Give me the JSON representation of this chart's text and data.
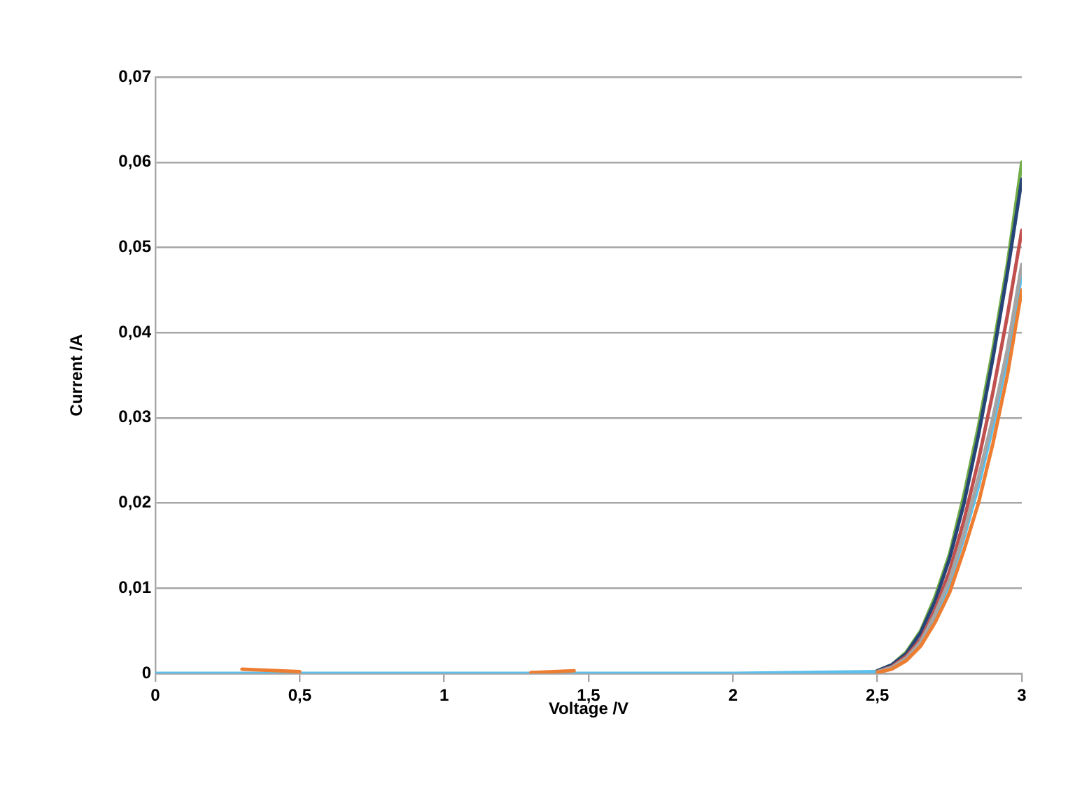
{
  "chart_data": {
    "type": "line",
    "xlabel": "Voltage /V",
    "ylabel": "Current /A",
    "x": [
      0,
      0.3,
      0.5,
      1,
      1.3,
      1.45,
      1.5,
      2,
      2.5,
      2.55,
      2.6,
      2.65,
      2.7,
      2.75,
      2.8,
      2.85,
      2.9,
      2.95,
      3
    ],
    "series": [
      {
        "color": "#ed7d31",
        "values": [
          null,
          0.0005,
          0.0002,
          null,
          0.0001,
          0.0003,
          null,
          null,
          0.0001,
          0.0005,
          0.0015,
          0.0032,
          0.006,
          0.0095,
          0.0145,
          0.02,
          0.027,
          0.035,
          0.045
        ]
      },
      {
        "color": "#a5a5a5",
        "values": [
          null,
          null,
          null,
          null,
          null,
          null,
          null,
          null,
          0.0002,
          0.0007,
          0.0018,
          0.0037,
          0.007,
          0.011,
          0.0165,
          0.023,
          0.03,
          0.038,
          0.048
        ]
      },
      {
        "color": "#c0504d",
        "values": [
          null,
          null,
          null,
          null,
          null,
          null,
          null,
          null,
          0.0002,
          0.0008,
          0.002,
          0.004,
          0.0075,
          0.012,
          0.018,
          0.025,
          0.033,
          0.042,
          0.052
        ]
      },
      {
        "color": "#264478",
        "values": [
          null,
          null,
          null,
          null,
          null,
          null,
          null,
          null,
          0.0003,
          0.001,
          0.0023,
          0.0048,
          0.0085,
          0.0135,
          0.02,
          0.028,
          0.037,
          0.047,
          0.058
        ]
      },
      {
        "color": "#70ad47",
        "values": [
          null,
          null,
          null,
          null,
          null,
          null,
          null,
          null,
          0.0003,
          0.001,
          0.0025,
          0.005,
          0.009,
          0.014,
          0.021,
          0.029,
          0.038,
          0.048,
          0.06
        ]
      },
      {
        "color": "#5bc0eb",
        "values": [
          0,
          0,
          0,
          0,
          0,
          0,
          0,
          0,
          0.0002,
          0.0007,
          0.0017,
          0.0035,
          0.0067,
          0.0105,
          0.016,
          0.022,
          0.029,
          0.037,
          0.047
        ]
      }
    ],
    "xlim": [
      0,
      3
    ],
    "xticks": [
      0,
      {
        "value": 0.5,
        "label": "0,5"
      },
      1,
      {
        "value": 1.5,
        "label": "1,5"
      },
      2,
      {
        "value": 2.5,
        "label": "2,5"
      },
      3
    ],
    "ylim": [
      0,
      0.07
    ],
    "yticks": [
      0,
      {
        "value": 0.01,
        "label": "0,01"
      },
      {
        "value": 0.02,
        "label": "0,02"
      },
      {
        "value": 0.03,
        "label": "0,03"
      },
      {
        "value": 0.04,
        "label": "0,04"
      },
      {
        "value": 0.05,
        "label": "0,05"
      },
      {
        "value": 0.06,
        "label": "0,06"
      },
      {
        "value": 0.07,
        "label": "0,07"
      }
    ],
    "grid": "y",
    "legend": false,
    "marker": "none",
    "line_style": "solid"
  }
}
